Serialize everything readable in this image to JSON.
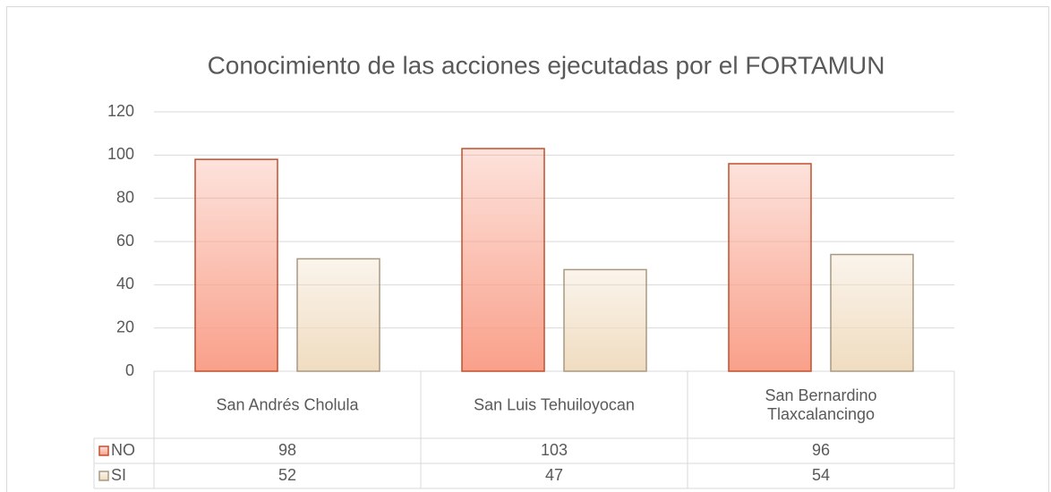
{
  "chart_data": {
    "type": "bar",
    "title": "Conocimiento de las acciones ejecutadas por el FORTAMUN",
    "categories": [
      "San Andrés Cholula",
      "San Luis Tehuiloyocan",
      "San Bernardino Tlaxcalancingo"
    ],
    "series": [
      {
        "name": "NO",
        "color": "#f9a08a",
        "edge": "#c0502e",
        "values": [
          98,
          103,
          96
        ]
      },
      {
        "name": "SI",
        "color": "#f0dcc0",
        "edge": "#a89880",
        "values": [
          52,
          47,
          54
        ]
      }
    ],
    "ylim": [
      0,
      120
    ],
    "yticks": [
      0,
      20,
      40,
      60,
      80,
      100,
      120
    ],
    "grid": true,
    "data_table": true
  }
}
